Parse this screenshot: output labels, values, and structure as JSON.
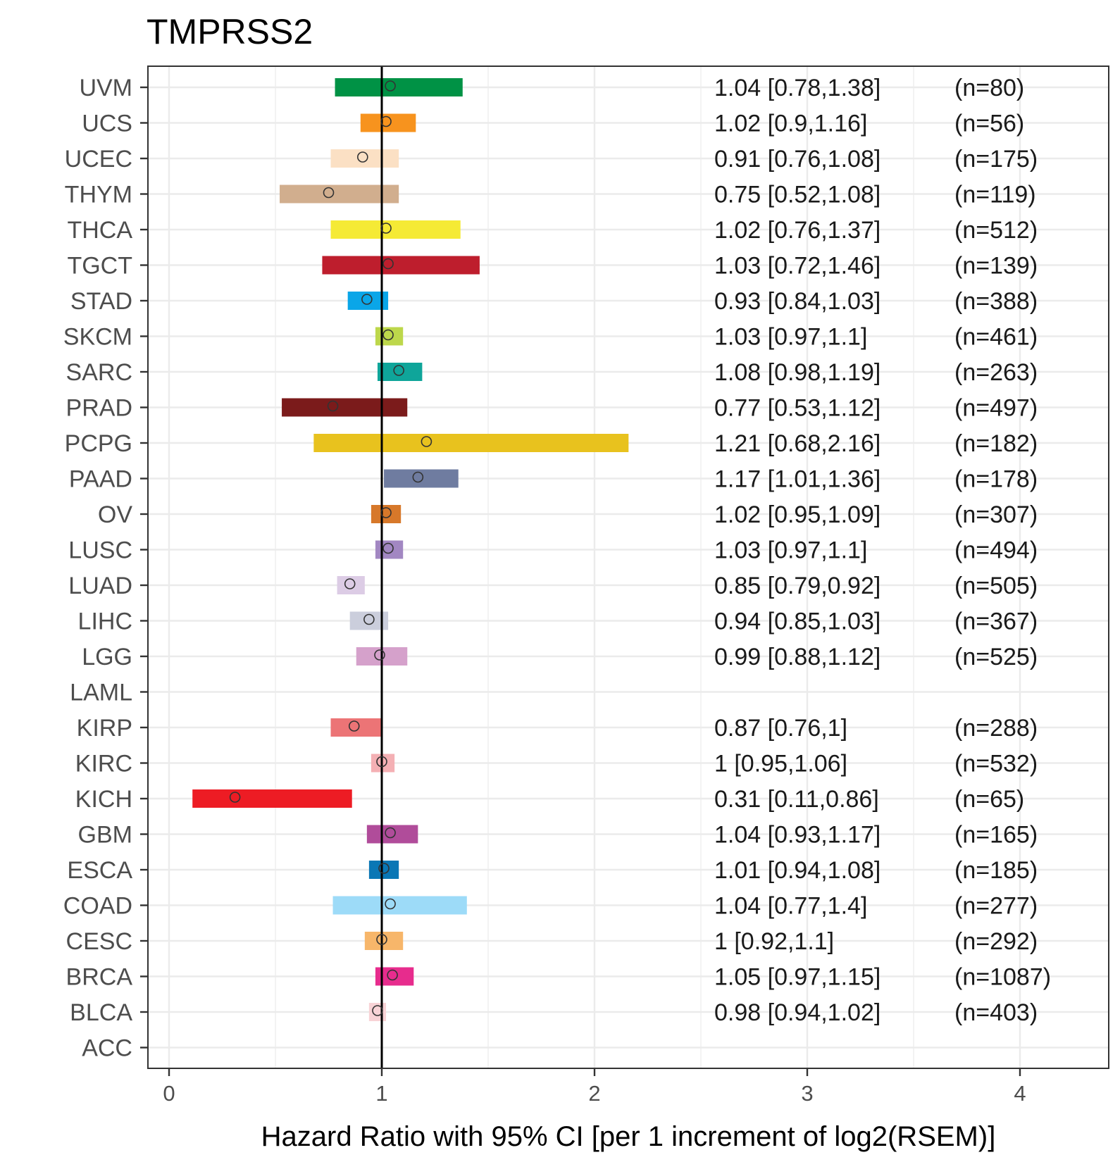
{
  "chart_data": {
    "type": "forest",
    "title": "TMPRSS2",
    "xlabel": "Hazard Ratio with 95% CI [per 1 increment of log2(RSEM)]",
    "ylabel": "",
    "xlim": [
      -0.1,
      4.4
    ],
    "xticks": [
      0,
      1,
      2,
      3,
      4
    ],
    "reference_line": 1,
    "grid": true,
    "rows": [
      {
        "name": "UVM",
        "hr": 1.04,
        "lo": 0.78,
        "hi": 1.38,
        "label": "1.04 [0.78,1.38]",
        "n": "(n=80)",
        "color": "#009245"
      },
      {
        "name": "UCS",
        "hr": 1.02,
        "lo": 0.9,
        "hi": 1.16,
        "label": "1.02 [0.9,1.16]",
        "n": "(n=56)",
        "color": "#F7931E"
      },
      {
        "name": "UCEC",
        "hr": 0.91,
        "lo": 0.76,
        "hi": 1.08,
        "label": "0.91 [0.76,1.08]",
        "n": "(n=175)",
        "color": "#FBE0C4"
      },
      {
        "name": "THYM",
        "hr": 0.75,
        "lo": 0.52,
        "hi": 1.08,
        "label": "0.75 [0.52,1.08]",
        "n": "(n=119)",
        "color": "#D1AE8E"
      },
      {
        "name": "THCA",
        "hr": 1.02,
        "lo": 0.76,
        "hi": 1.37,
        "label": "1.02 [0.76,1.37]",
        "n": "(n=512)",
        "color": "#F5EA35"
      },
      {
        "name": "TGCT",
        "hr": 1.03,
        "lo": 0.72,
        "hi": 1.46,
        "label": "1.03 [0.72,1.46]",
        "n": "(n=139)",
        "color": "#BE1E2D"
      },
      {
        "name": "STAD",
        "hr": 0.93,
        "lo": 0.84,
        "hi": 1.03,
        "label": "0.93 [0.84,1.03]",
        "n": "(n=388)",
        "color": "#0AA6E8"
      },
      {
        "name": "SKCM",
        "hr": 1.03,
        "lo": 0.97,
        "hi": 1.1,
        "label": "1.03 [0.97,1.1]",
        "n": "(n=461)",
        "color": "#BDD74B"
      },
      {
        "name": "SARC",
        "hr": 1.08,
        "lo": 0.98,
        "hi": 1.19,
        "label": "1.08 [0.98,1.19]",
        "n": "(n=263)",
        "color": "#0FA59A"
      },
      {
        "name": "PRAD",
        "hr": 0.77,
        "lo": 0.53,
        "hi": 1.12,
        "label": "0.77 [0.53,1.12]",
        "n": "(n=497)",
        "color": "#7B1B1B"
      },
      {
        "name": "PCPG",
        "hr": 1.21,
        "lo": 0.68,
        "hi": 2.16,
        "label": "1.21 [0.68,2.16]",
        "n": "(n=182)",
        "color": "#E8C21E"
      },
      {
        "name": "PAAD",
        "hr": 1.17,
        "lo": 1.01,
        "hi": 1.36,
        "label": "1.17 [1.01,1.36]",
        "n": "(n=178)",
        "color": "#6F7CA0"
      },
      {
        "name": "OV",
        "hr": 1.02,
        "lo": 0.95,
        "hi": 1.09,
        "label": "1.02 [0.95,1.09]",
        "n": "(n=307)",
        "color": "#D7782A"
      },
      {
        "name": "LUSC",
        "hr": 1.03,
        "lo": 0.97,
        "hi": 1.1,
        "label": "1.03 [0.97,1.1]",
        "n": "(n=494)",
        "color": "#A287C2"
      },
      {
        "name": "LUAD",
        "hr": 0.85,
        "lo": 0.79,
        "hi": 0.92,
        "label": "0.85 [0.79,0.92]",
        "n": "(n=505)",
        "color": "#DCCCE5"
      },
      {
        "name": "LIHC",
        "hr": 0.94,
        "lo": 0.85,
        "hi": 1.03,
        "label": "0.94 [0.85,1.03]",
        "n": "(n=367)",
        "color": "#CBCEDC"
      },
      {
        "name": "LGG",
        "hr": 0.99,
        "lo": 0.88,
        "hi": 1.12,
        "label": "0.99 [0.88,1.12]",
        "n": "(n=525)",
        "color": "#D5A1CB"
      },
      {
        "name": "LAML",
        "hr": null,
        "lo": null,
        "hi": null,
        "label": "",
        "n": "",
        "color": "#FFFFFF"
      },
      {
        "name": "KIRP",
        "hr": 0.87,
        "lo": 0.76,
        "hi": 1,
        "label": "0.87 [0.76,1]",
        "n": "(n=288)",
        "color": "#EC7476"
      },
      {
        "name": "KIRC",
        "hr": 1,
        "lo": 0.95,
        "hi": 1.06,
        "label": "1 [0.95,1.06]",
        "n": "(n=532)",
        "color": "#F4B0B4"
      },
      {
        "name": "KICH",
        "hr": 0.31,
        "lo": 0.11,
        "hi": 0.86,
        "label": "0.31 [0.11,0.86]",
        "n": "(n=65)",
        "color": "#ED1C24"
      },
      {
        "name": "GBM",
        "hr": 1.04,
        "lo": 0.93,
        "hi": 1.17,
        "label": "1.04 [0.93,1.17]",
        "n": "(n=165)",
        "color": "#B04C9A"
      },
      {
        "name": "ESCA",
        "hr": 1.01,
        "lo": 0.94,
        "hi": 1.08,
        "label": "1.01 [0.94,1.08]",
        "n": "(n=185)",
        "color": "#0A77B5"
      },
      {
        "name": "COAD",
        "hr": 1.04,
        "lo": 0.77,
        "hi": 1.4,
        "label": "1.04 [0.77,1.4]",
        "n": "(n=277)",
        "color": "#9DDBF8"
      },
      {
        "name": "CESC",
        "hr": 1,
        "lo": 0.92,
        "hi": 1.1,
        "label": "1 [0.92,1.1]",
        "n": "(n=292)",
        "color": "#F7B66A"
      },
      {
        "name": "BRCA",
        "hr": 1.05,
        "lo": 0.97,
        "hi": 1.15,
        "label": "1.05 [0.97,1.15]",
        "n": "(n=1087)",
        "color": "#E72C8D"
      },
      {
        "name": "BLCA",
        "hr": 0.98,
        "lo": 0.94,
        "hi": 1.02,
        "label": "0.98 [0.94,1.02]",
        "n": "(n=403)",
        "color": "#F8D3D6"
      },
      {
        "name": "ACC",
        "hr": null,
        "lo": null,
        "hi": null,
        "label": "",
        "n": "",
        "color": "#FFFFFF"
      }
    ]
  }
}
